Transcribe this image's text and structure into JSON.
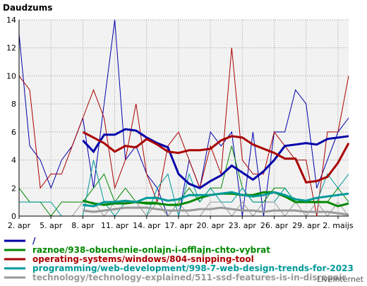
{
  "chart_data": {
    "type": "line",
    "title": "Daudzums",
    "xlabel": "",
    "ylabel": "",
    "x_tick_labels": [
      "2. apr",
      "5. apr",
      "8. apr",
      "11. apr",
      "14. apr",
      "17. apr",
      "20. apr",
      "23. apr",
      "26. apr",
      "29. apr",
      "2. maijs"
    ],
    "y_ticks": [
      0,
      2,
      4,
      6,
      8,
      10,
      12,
      14
    ],
    "ylim": [
      0,
      14
    ],
    "x_count": 32,
    "grid": true,
    "legend_position": "bottom",
    "series": [
      {
        "name": "/",
        "color": "#0000aa",
        "raw": [
          13,
          5,
          4,
          2,
          4,
          5,
          7,
          2,
          8,
          14,
          4,
          5,
          3,
          2,
          0,
          0,
          4,
          2,
          6,
          5,
          6,
          0,
          6,
          0,
          6,
          6,
          9,
          8,
          2,
          4,
          6,
          7
        ],
        "avg": [
          null,
          null,
          null,
          null,
          null,
          null,
          5.4,
          4.6,
          5.8,
          5.8,
          6.2,
          6.1,
          5.6,
          5.2,
          4.9,
          3.0,
          2.3,
          2.0,
          2.5,
          2.9,
          3.6,
          3.1,
          2.6,
          3.2,
          4.0,
          5.0,
          5.1,
          5.2,
          5.1,
          5.5,
          5.6,
          5.7
        ]
      },
      {
        "name": "raznoe/938-obuchenie-onlajn-i-offlajn-chto-vybrat",
        "color": "#008800",
        "raw": [
          2,
          1,
          1,
          0,
          1,
          1,
          1,
          2,
          3,
          1,
          2,
          1,
          1,
          1,
          0,
          1,
          2,
          1,
          2,
          2,
          5,
          2,
          1,
          1,
          2,
          2,
          1,
          1,
          1,
          1,
          2,
          1
        ],
        "avg": [
          null,
          null,
          null,
          null,
          null,
          null,
          1.1,
          0.9,
          0.8,
          0.9,
          0.9,
          1.0,
          0.9,
          0.9,
          0.8,
          0.8,
          1.0,
          1.3,
          1.5,
          1.6,
          1.6,
          1.5,
          1.5,
          1.7,
          1.7,
          1.4,
          1.0,
          1.0,
          1.0,
          1.0,
          0.7,
          0.9
        ]
      },
      {
        "name": "operating-systems/windows/804-snipping-tool",
        "color": "#aa0000",
        "raw": [
          10,
          9,
          2,
          3,
          3,
          5,
          7,
          9,
          7,
          2,
          4,
          8,
          3,
          1,
          5,
          6,
          4,
          2,
          5,
          3,
          12,
          4,
          3,
          3,
          6,
          5,
          4,
          4,
          0,
          6,
          6,
          10
        ],
        "avg": [
          null,
          null,
          null,
          null,
          null,
          null,
          6.0,
          5.6,
          5.2,
          4.6,
          5.0,
          4.9,
          5.5,
          5.1,
          4.6,
          4.5,
          4.7,
          4.7,
          4.8,
          5.4,
          5.7,
          5.6,
          5.1,
          4.8,
          4.5,
          4.1,
          4.1,
          2.4,
          2.5,
          2.8,
          3.8,
          5.2
        ]
      },
      {
        "name": "programming/web-development/998-7-web-design-trends-for-2023",
        "color": "#009999",
        "raw": [
          1,
          1,
          1,
          1,
          0,
          0,
          0,
          4,
          1,
          0,
          1,
          1,
          0,
          2,
          3,
          0,
          3,
          1,
          2,
          1,
          1,
          2,
          1,
          1,
          1,
          2,
          1,
          1,
          1,
          3,
          2,
          3
        ],
        "avg": [
          null,
          null,
          null,
          null,
          null,
          null,
          0.8,
          0.7,
          1.0,
          1.0,
          1.1,
          1.0,
          1.3,
          1.3,
          1.1,
          1.2,
          1.5,
          1.5,
          1.5,
          1.6,
          1.7,
          1.5,
          1.4,
          1.5,
          1.7,
          1.5,
          1.2,
          1.1,
          1.3,
          1.4,
          1.5,
          1.6
        ]
      },
      {
        "name": "technology/technology-explained/511-ssd-features-is-in-disrepair",
        "color": "#999999",
        "raw": [
          0,
          0,
          0,
          0,
          0,
          0,
          1,
          1,
          0,
          1,
          1,
          1,
          0,
          1,
          0,
          1,
          0,
          0,
          1,
          1,
          0,
          1,
          0,
          1,
          1,
          0,
          1,
          0,
          1,
          0,
          1,
          0
        ],
        "avg": [
          null,
          null,
          null,
          null,
          null,
          null,
          0.4,
          0.3,
          0.4,
          0.5,
          0.6,
          0.6,
          0.6,
          0.5,
          0.4,
          0.4,
          0.4,
          0.5,
          0.5,
          0.6,
          0.5,
          0.4,
          0.4,
          0.3,
          0.4,
          0.4,
          0.4,
          0.3,
          0.3,
          0.3,
          0.2,
          0.1
        ]
      }
    ]
  },
  "brand": "LiveInternet"
}
